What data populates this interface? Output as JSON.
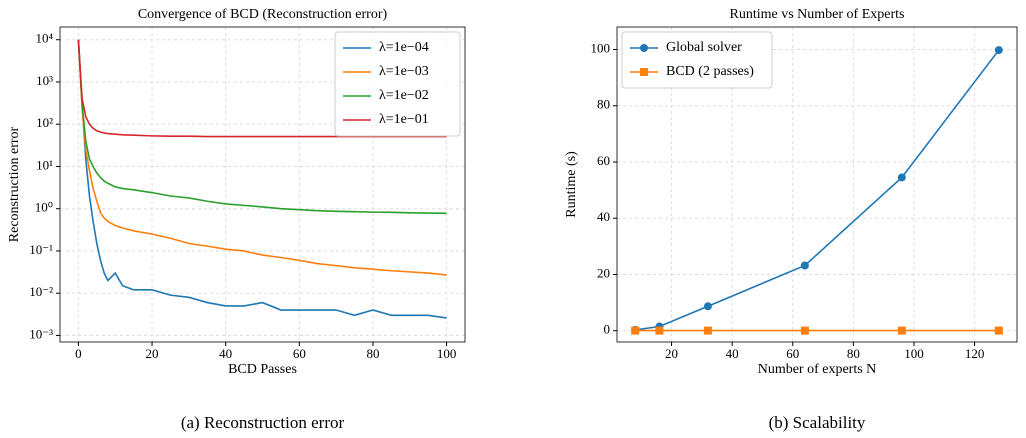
{
  "chart_data": [
    {
      "type": "line",
      "title": "Convergence of BCD (Reconstruction error)",
      "xlabel": "BCD Passes",
      "ylabel": "Reconstruction error",
      "caption": "(a) Reconstruction error",
      "log_y": true,
      "grid": true,
      "legend": "upper right",
      "x": [
        0,
        1,
        2,
        3,
        4,
        5,
        6,
        7,
        8,
        10,
        12,
        15,
        20,
        25,
        30,
        35,
        40,
        45,
        50,
        55,
        60,
        65,
        70,
        75,
        80,
        85,
        90,
        95,
        100
      ],
      "series": [
        {
          "name": "λ=1e−04",
          "color": "#1f77b4",
          "values": [
            10000,
            300,
            15,
            2,
            0.5,
            0.15,
            0.06,
            0.03,
            0.02,
            0.03,
            0.015,
            0.012,
            0.012,
            0.009,
            0.008,
            0.006,
            0.005,
            0.005,
            0.006,
            0.004,
            0.004,
            0.004,
            0.004,
            0.003,
            0.004,
            0.003,
            0.003,
            0.003,
            0.0026
          ]
        },
        {
          "name": "λ=1e−03",
          "color": "#ff7f0e",
          "values": [
            10000,
            250,
            25,
            8,
            3,
            1.5,
            0.8,
            0.6,
            0.5,
            0.4,
            0.35,
            0.3,
            0.25,
            0.2,
            0.15,
            0.13,
            0.11,
            0.1,
            0.08,
            0.07,
            0.06,
            0.05,
            0.045,
            0.04,
            0.037,
            0.034,
            0.032,
            0.03,
            0.027
          ]
        },
        {
          "name": "λ=1e−02",
          "color": "#2ca02c",
          "values": [
            10000,
            300,
            40,
            15,
            10,
            7,
            5.5,
            4.5,
            4,
            3.3,
            3,
            2.8,
            2.4,
            2,
            1.8,
            1.5,
            1.3,
            1.2,
            1.1,
            1.0,
            0.95,
            0.9,
            0.87,
            0.85,
            0.83,
            0.82,
            0.8,
            0.79,
            0.78
          ]
        },
        {
          "name": "λ=1e−01",
          "color": "#d62728",
          "values": [
            10000,
            400,
            150,
            100,
            80,
            70,
            65,
            62,
            60,
            58,
            56,
            55,
            53,
            52,
            52,
            51,
            51,
            51,
            51,
            51,
            51,
            51,
            51,
            51,
            51,
            51,
            51,
            51,
            51
          ]
        }
      ],
      "xlim": [
        -5,
        105
      ],
      "xticks": [
        0,
        20,
        40,
        60,
        80,
        100
      ],
      "ylim": [
        0.0007,
        20000
      ],
      "yticks": [
        {
          "value": 0.001,
          "label": "10⁻³"
        },
        {
          "value": 0.01,
          "label": "10⁻²"
        },
        {
          "value": 0.1,
          "label": "10⁻¹"
        },
        {
          "value": 1,
          "label": "10⁰"
        },
        {
          "value": 10,
          "label": "10¹"
        },
        {
          "value": 100,
          "label": "10²"
        },
        {
          "value": 1000,
          "label": "10³"
        },
        {
          "value": 10000,
          "label": "10⁴"
        }
      ]
    },
    {
      "type": "line",
      "title": "Runtime vs Number of Experts",
      "xlabel": "Number of experts N",
      "ylabel": "Runtime (s)",
      "caption": "(b) Scalability",
      "log_y": false,
      "grid": true,
      "legend": "upper left",
      "x": [
        8,
        16,
        32,
        64,
        96,
        128
      ],
      "series": [
        {
          "name": "Global solver",
          "color": "#1f77b4",
          "marker": "circle",
          "values": [
            0.3,
            1.5,
            8.7,
            23.2,
            54.5,
            99.8
          ]
        },
        {
          "name": "BCD (2 passes)",
          "color": "#ff7f0e",
          "marker": "square",
          "values": [
            0.05,
            0.05,
            0.05,
            0.05,
            0.05,
            0.05
          ]
        }
      ],
      "xlim": [
        2,
        134
      ],
      "xticks": [
        20,
        40,
        60,
        80,
        100,
        120
      ],
      "ylim": [
        -4,
        108
      ],
      "yticks": [
        0,
        20,
        40,
        60,
        80,
        100
      ]
    }
  ]
}
